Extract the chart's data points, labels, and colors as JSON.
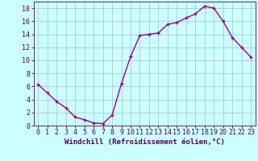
{
  "x": [
    0,
    1,
    2,
    3,
    4,
    5,
    6,
    7,
    8,
    9,
    10,
    11,
    12,
    13,
    14,
    15,
    16,
    17,
    18,
    19,
    20,
    21,
    22,
    23
  ],
  "y": [
    6.3,
    5.0,
    3.7,
    2.7,
    1.3,
    0.9,
    0.4,
    0.3,
    1.6,
    6.4,
    10.6,
    13.8,
    14.0,
    14.2,
    15.5,
    15.8,
    16.5,
    17.1,
    18.3,
    18.0,
    16.0,
    13.5,
    12.0,
    10.5
  ],
  "line_color": "#990099",
  "marker": "+",
  "marker_size": 3.5,
  "marker_linewidth": 1.0,
  "line_width": 1.0,
  "background_color": "#ccffff",
  "grid_color": "#aacccc",
  "xlabel": "Windchill (Refroidissement éolien,°C)",
  "xlabel_fontsize": 6.5,
  "xlim": [
    -0.5,
    23.5
  ],
  "ylim": [
    0,
    19
  ],
  "xtick_labels": [
    "0",
    "1",
    "2",
    "3",
    "4",
    "5",
    "6",
    "7",
    "8",
    "9",
    "10",
    "11",
    "12",
    "13",
    "14",
    "15",
    "16",
    "17",
    "18",
    "19",
    "20",
    "21",
    "22",
    "23"
  ],
  "ytick_values": [
    0,
    2,
    4,
    6,
    8,
    10,
    12,
    14,
    16,
    18
  ],
  "tick_fontsize": 6.0
}
